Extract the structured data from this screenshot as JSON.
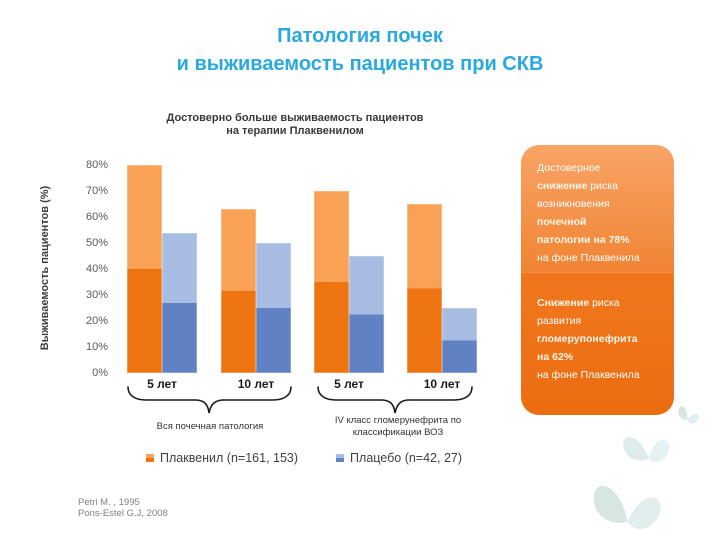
{
  "slide": {
    "title_line1": "Патология почек",
    "title_line2": "и выживаемость пациентов при СКВ",
    "title_color": "#2AA9DF",
    "subtitle_line1": "Достоверно больше выживаемость пациентов",
    "subtitle_line2": "на терапии Плаквенилом"
  },
  "chart_data": {
    "type": "bar",
    "title": "Достоверно больше выживаемость пациентов на терапии Плаквенилом",
    "ylabel": "Выживаемость пациентов (%)",
    "ylim": [
      0,
      80
    ],
    "ytick_labels": [
      "80%",
      "70%",
      "60%",
      "50%",
      "40%",
      "30%",
      "20%",
      "10%",
      "0%"
    ],
    "grid": false,
    "legend_position": "bottom",
    "categories": [
      "5 лет",
      "10 лет",
      "5 лет",
      "10 лет"
    ],
    "group_labels": [
      "Вся почечная патология",
      "IV класс гломерунефрита по классификации ВОЗ"
    ],
    "series": [
      {
        "name": "Плаквенил (n=161, 153)",
        "color_light": "#F9A155",
        "color_dark": "#EE7412",
        "values": [
          80,
          63,
          70,
          65
        ]
      },
      {
        "name": "Плацебо (n=42, 27)",
        "color_light": "#A6BCE2",
        "color_dark": "#5E82C4",
        "values": [
          54,
          50,
          45,
          25
        ]
      }
    ]
  },
  "callouts": [
    {
      "lines": [
        [
          {
            "t": "Достоверное",
            "b": false
          }
        ],
        [
          {
            "t": "снижение",
            "b": true
          },
          {
            "t": " риска",
            "b": false
          }
        ],
        [
          {
            "t": "возникновения",
            "b": false
          }
        ],
        [
          {
            "t": "почечной",
            "b": true
          }
        ],
        [
          {
            "t": "патологии на 78%",
            "b": true
          }
        ],
        [
          {
            "t": " на фоне Плаквенила",
            "b": false
          }
        ]
      ]
    },
    {
      "lines": [
        [
          {
            "t": "Снижение",
            "b": true
          },
          {
            "t": " риска",
            "b": false
          }
        ],
        [
          {
            "t": "развития",
            "b": false
          }
        ],
        [
          {
            "t": "гломерупонефрита",
            "b": true
          }
        ],
        [
          {
            "t": "на 62%",
            "b": true
          }
        ],
        [
          {
            "t": "на фоне Плаквенила",
            "b": false
          }
        ]
      ]
    }
  ],
  "footer": {
    "ref1": "Petri M. , 1995",
    "ref2": "Pons-Estel G.J, 2008"
  }
}
